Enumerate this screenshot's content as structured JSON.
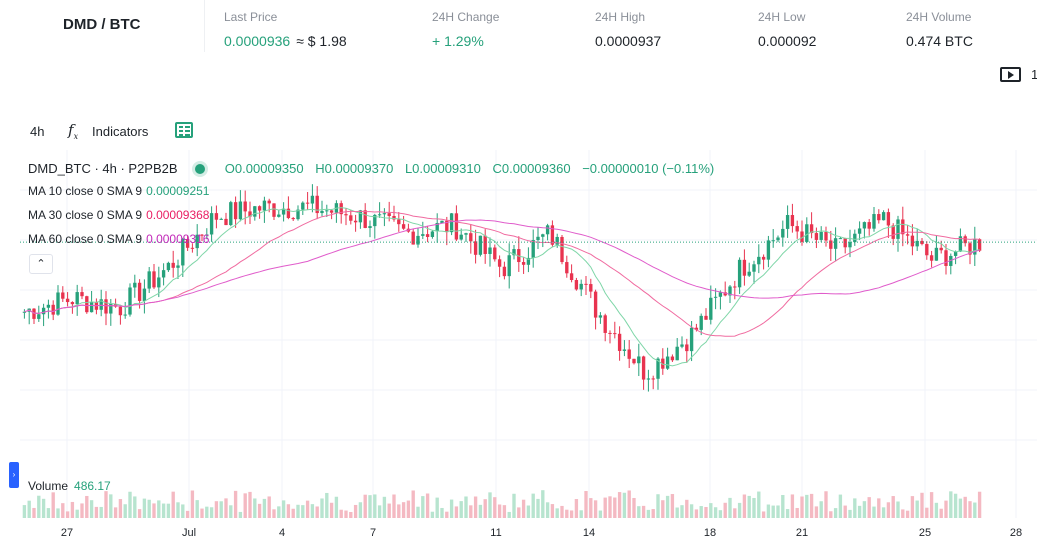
{
  "ticker": {
    "pair": "DMD / BTC",
    "stats": [
      {
        "label": "Last Price",
        "value": "0.0000936",
        "extra": "≈ $ 1.98"
      },
      {
        "label": "24H Change",
        "value": "+ 1.29%"
      },
      {
        "label": "24H High",
        "value": "0.0000937"
      },
      {
        "label": "24H Low",
        "value": "0.000092"
      },
      {
        "label": "24H Volume",
        "value": "0.474 BTC"
      }
    ]
  },
  "replay": {
    "icon": "play-icon",
    "label": "1"
  },
  "toolbar": {
    "interval": "4h",
    "indicators_label": "Indicators",
    "fx_icon": "fx-icon",
    "template_icon": "layout-template-icon"
  },
  "legend": {
    "symbol": "DMD_BTC · 4h · P2PB2B",
    "o_key": "O",
    "o_val": "0.00009350",
    "h_key": "H",
    "h_val": "0.00009370",
    "l_key": "L",
    "l_val": "0.00009310",
    "c_key": "C",
    "c_val": "0.00009360",
    "change": "−0.00000010 (−0.11%)",
    "ma": [
      {
        "label": "MA 10 close 0 SMA 9",
        "value": "0.00009251",
        "color": "#26a17b"
      },
      {
        "label": "MA 30 close 0 SMA 9",
        "value": "0.00009368",
        "color": "#e91e63"
      },
      {
        "label": "MA 60 close 0 SMA 9",
        "value": "0.00009316",
        "color": "#c228b8"
      }
    ],
    "collapse_icon": "chevron-up-icon"
  },
  "volume": {
    "label": "Volume",
    "value": "486.17"
  },
  "colors": {
    "up": "#26a17b",
    "down": "#e8334f",
    "ma10": "#7fd6a8",
    "ma60": "#e05ccb",
    "grid": "#f0f3fa",
    "lastline": "#26a17b"
  },
  "chart_data": {
    "type": "candlestick",
    "x_ticks": [
      "27",
      "Jul",
      "4",
      "7",
      "11",
      "14",
      "18",
      "21",
      "25",
      "28"
    ],
    "price_panel": {
      "close_levels": [
        9.2e-05,
        9.23e-05,
        9.21e-05,
        9.3e-05,
        9.42e-05,
        9.44e-05,
        9.44e-05,
        9.42e-05,
        9.38e-05,
        9.4e-05,
        9.3e-05,
        9.38e-05,
        9.2e-05,
        9.06e-05,
        9.15e-05,
        9.3e-05,
        9.4e-05,
        9.34e-05,
        9.41e-05,
        9.32e-05,
        9.36e-05
      ],
      "last_price": 9.36e-05
    },
    "ma_lines": [
      "MA 10",
      "MA 30",
      "MA 60"
    ]
  }
}
